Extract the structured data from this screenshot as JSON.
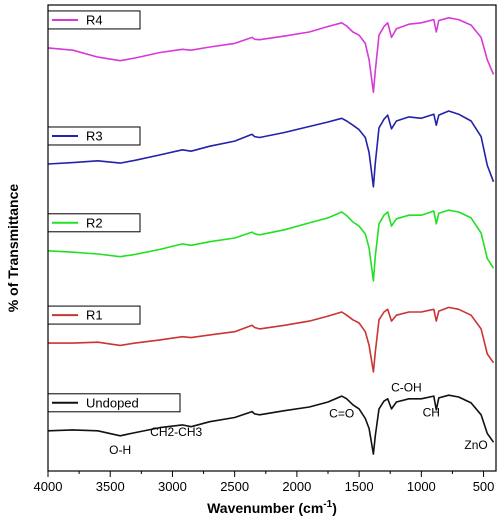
{
  "chart_data": {
    "type": "line",
    "xlabel": "Wavenumber (cm",
    "xlabel_superscript": "-1",
    "xlabel_suffix": ")",
    "ylabel": "% of Transmittance",
    "xlim": [
      4000,
      400
    ],
    "x_ticks": [
      4000,
      3500,
      3000,
      2500,
      2000,
      1500,
      1000,
      500
    ],
    "grid": false,
    "legend_placement": "left of each trace",
    "series": [
      {
        "name": "R4",
        "color": "#d63ad6",
        "points": [
          [
            4000,
            82.6
          ],
          [
            3800,
            82.1
          ],
          [
            3600,
            80.6
          ],
          [
            3420,
            79.8
          ],
          [
            3300,
            80.4
          ],
          [
            3100,
            81.6
          ],
          [
            2920,
            82.3
          ],
          [
            2850,
            82.1
          ],
          [
            2700,
            82.8
          ],
          [
            2500,
            83.6
          ],
          [
            2360,
            84.9
          ],
          [
            2340,
            84.5
          ],
          [
            2300,
            84.4
          ],
          [
            2100,
            85.2
          ],
          [
            1900,
            86.1
          ],
          [
            1750,
            87.3
          ],
          [
            1640,
            88.1
          ],
          [
            1600,
            87.4
          ],
          [
            1550,
            86.1
          ],
          [
            1500,
            85.4
          ],
          [
            1450,
            83.6
          ],
          [
            1420,
            80.0
          ],
          [
            1385,
            72.9
          ],
          [
            1370,
            77.6
          ],
          [
            1340,
            85.4
          ],
          [
            1300,
            87.3
          ],
          [
            1270,
            88.1
          ],
          [
            1240,
            84.9
          ],
          [
            1200,
            86.8
          ],
          [
            1100,
            87.8
          ],
          [
            1000,
            88.1
          ],
          [
            900,
            88.8
          ],
          [
            880,
            86.1
          ],
          [
            860,
            88.6
          ],
          [
            780,
            89.2
          ],
          [
            700,
            88.8
          ],
          [
            600,
            87.6
          ],
          [
            520,
            84.9
          ],
          [
            470,
            80.0
          ],
          [
            420,
            76.8
          ]
        ]
      },
      {
        "name": "R3",
        "color": "#2222aa",
        "points": [
          [
            4000,
            57.2
          ],
          [
            3800,
            57.5
          ],
          [
            3600,
            57.9
          ],
          [
            3420,
            57.4
          ],
          [
            3300,
            58.0
          ],
          [
            3100,
            59.2
          ],
          [
            2920,
            60.3
          ],
          [
            2850,
            60.0
          ],
          [
            2700,
            61.1
          ],
          [
            2500,
            62.2
          ],
          [
            2360,
            63.7
          ],
          [
            2340,
            63.2
          ],
          [
            2300,
            63.0
          ],
          [
            2100,
            64.1
          ],
          [
            1900,
            65.4
          ],
          [
            1750,
            66.4
          ],
          [
            1640,
            67.2
          ],
          [
            1600,
            66.6
          ],
          [
            1550,
            65.7
          ],
          [
            1500,
            64.7
          ],
          [
            1450,
            63.0
          ],
          [
            1420,
            59.7
          ],
          [
            1385,
            52.2
          ],
          [
            1370,
            57.4
          ],
          [
            1340,
            65.1
          ],
          [
            1300,
            67.0
          ],
          [
            1270,
            67.9
          ],
          [
            1240,
            64.9
          ],
          [
            1200,
            66.6
          ],
          [
            1100,
            67.5
          ],
          [
            1000,
            67.2
          ],
          [
            900,
            68.1
          ],
          [
            880,
            65.7
          ],
          [
            860,
            67.9
          ],
          [
            780,
            68.8
          ],
          [
            700,
            68.1
          ],
          [
            600,
            66.6
          ],
          [
            520,
            63.2
          ],
          [
            470,
            56.9
          ],
          [
            420,
            53.3
          ]
        ]
      },
      {
        "name": "R2",
        "color": "#22e022",
        "points": [
          [
            4000,
            38.2
          ],
          [
            3800,
            37.9
          ],
          [
            3600,
            37.5
          ],
          [
            3420,
            36.9
          ],
          [
            3300,
            37.4
          ],
          [
            3100,
            38.5
          ],
          [
            2920,
            39.7
          ],
          [
            2850,
            39.4
          ],
          [
            2700,
            40.2
          ],
          [
            2500,
            41.0
          ],
          [
            2360,
            42.3
          ],
          [
            2340,
            41.9
          ],
          [
            2300,
            41.7
          ],
          [
            2100,
            42.8
          ],
          [
            1900,
            44.3
          ],
          [
            1750,
            45.4
          ],
          [
            1640,
            46.7
          ],
          [
            1600,
            45.9
          ],
          [
            1550,
            44.5
          ],
          [
            1500,
            43.6
          ],
          [
            1450,
            41.9
          ],
          [
            1420,
            38.8
          ],
          [
            1385,
            31.6
          ],
          [
            1370,
            37.0
          ],
          [
            1340,
            44.1
          ],
          [
            1300,
            46.0
          ],
          [
            1270,
            46.7
          ],
          [
            1240,
            43.6
          ],
          [
            1200,
            45.2
          ],
          [
            1100,
            46.0
          ],
          [
            1000,
            46.0
          ],
          [
            900,
            46.9
          ],
          [
            880,
            44.1
          ],
          [
            860,
            46.4
          ],
          [
            780,
            47.1
          ],
          [
            700,
            46.7
          ],
          [
            600,
            45.4
          ],
          [
            520,
            42.1
          ],
          [
            470,
            36.5
          ],
          [
            420,
            34.4
          ]
        ]
      },
      {
        "name": "R1",
        "color": "#cc3333",
        "points": [
          [
            4000,
            18.0
          ],
          [
            3800,
            18.0
          ],
          [
            3600,
            18.2
          ],
          [
            3420,
            17.5
          ],
          [
            3300,
            18.0
          ],
          [
            3100,
            18.7
          ],
          [
            2920,
            19.4
          ],
          [
            2850,
            19.2
          ],
          [
            2700,
            19.8
          ],
          [
            2500,
            20.5
          ],
          [
            2360,
            21.9
          ],
          [
            2340,
            21.4
          ],
          [
            2300,
            21.1
          ],
          [
            2100,
            21.9
          ],
          [
            1900,
            22.8
          ],
          [
            1750,
            23.9
          ],
          [
            1640,
            24.8
          ],
          [
            1600,
            24.1
          ],
          [
            1550,
            23.1
          ],
          [
            1500,
            22.4
          ],
          [
            1450,
            20.5
          ],
          [
            1420,
            17.5
          ],
          [
            1385,
            11.7
          ],
          [
            1370,
            16.0
          ],
          [
            1340,
            23.1
          ],
          [
            1300,
            24.8
          ],
          [
            1270,
            25.4
          ],
          [
            1240,
            22.8
          ],
          [
            1200,
            24.1
          ],
          [
            1100,
            24.8
          ],
          [
            1000,
            24.8
          ],
          [
            900,
            25.4
          ],
          [
            880,
            22.8
          ],
          [
            860,
            25.0
          ],
          [
            780,
            25.8
          ],
          [
            700,
            25.4
          ],
          [
            600,
            24.1
          ],
          [
            520,
            21.1
          ],
          [
            470,
            15.6
          ],
          [
            420,
            13.7
          ]
        ]
      },
      {
        "name": "Undoped",
        "color": "#111111",
        "points": [
          [
            4000,
            -1.2
          ],
          [
            3800,
            -1.0
          ],
          [
            3600,
            -1.2
          ],
          [
            3420,
            -2.3
          ],
          [
            3300,
            -1.6
          ],
          [
            3100,
            -0.5
          ],
          [
            2920,
            0.1
          ],
          [
            2850,
            -0.3
          ],
          [
            2700,
            0.8
          ],
          [
            2500,
            1.7
          ],
          [
            2360,
            3.0
          ],
          [
            2340,
            2.5
          ],
          [
            2300,
            2.3
          ],
          [
            2100,
            3.2
          ],
          [
            1900,
            4.0
          ],
          [
            1750,
            5.1
          ],
          [
            1640,
            6.4
          ],
          [
            1600,
            5.8
          ],
          [
            1550,
            4.5
          ],
          [
            1500,
            3.6
          ],
          [
            1450,
            1.5
          ],
          [
            1420,
            -0.7
          ],
          [
            1385,
            -6.3
          ],
          [
            1370,
            -2.3
          ],
          [
            1340,
            3.6
          ],
          [
            1300,
            5.3
          ],
          [
            1270,
            5.8
          ],
          [
            1240,
            3.6
          ],
          [
            1200,
            5.1
          ],
          [
            1100,
            5.8
          ],
          [
            1000,
            5.8
          ],
          [
            900,
            6.4
          ],
          [
            880,
            3.4
          ],
          [
            860,
            6.0
          ],
          [
            780,
            6.6
          ],
          [
            700,
            6.2
          ],
          [
            600,
            4.9
          ],
          [
            520,
            2.3
          ],
          [
            470,
            -1.8
          ],
          [
            420,
            -3.7
          ]
        ]
      }
    ],
    "annotations": [
      {
        "text": "O-H",
        "x": 3420,
        "y": -6.3
      },
      {
        "text": "CH2-CH3",
        "x": 2970,
        "y": -2.3
      },
      {
        "text": "C=O",
        "x": 1640,
        "y": 1.7
      },
      {
        "text": "C-OH",
        "x": 1120,
        "y": 7.4
      },
      {
        "text": "CH",
        "x": 920,
        "y": 1.9
      },
      {
        "text": "ZnO",
        "x": 560,
        "y": -5.2
      }
    ]
  }
}
